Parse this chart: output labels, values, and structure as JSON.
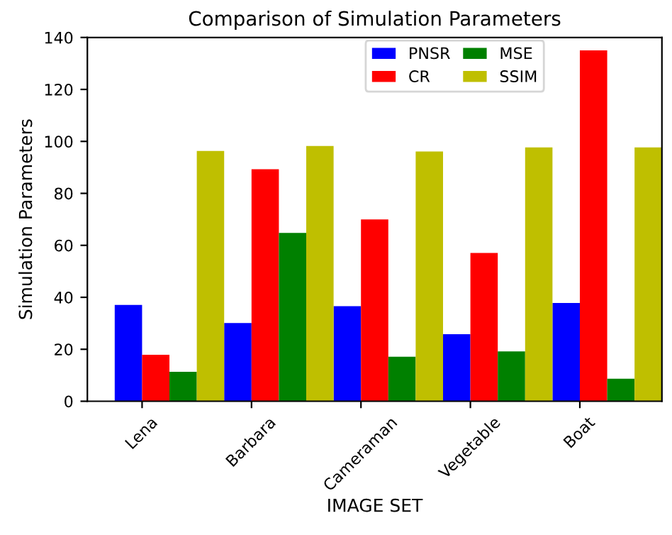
{
  "chart_data": {
    "type": "bar",
    "title": "Comparison of Simulation Parameters",
    "xlabel": "IMAGE SET",
    "ylabel": "Simulation Parameters",
    "categories": [
      "Lena",
      "Barbara",
      "Cameraman",
      "Vegetable",
      "Boat"
    ],
    "series": [
      {
        "name": "PNSR",
        "color": "#0000ff",
        "values": [
          37.1,
          30.1,
          36.6,
          25.8,
          37.8
        ]
      },
      {
        "name": "CR",
        "color": "#ff0000",
        "values": [
          17.9,
          89.3,
          70.0,
          57.1,
          135
        ]
      },
      {
        "name": "MSE",
        "color": "#008000",
        "values": [
          11.3,
          64.8,
          17.1,
          19.2,
          8.7
        ]
      },
      {
        "name": "SSIM",
        "color": "#bfbf00",
        "values": [
          96.3,
          98.2,
          96.1,
          97.7,
          97.7
        ]
      }
    ],
    "ylim": [
      0,
      140
    ],
    "yticks": [
      0,
      20,
      40,
      60,
      80,
      100,
      120,
      140
    ],
    "grid": false,
    "legend": "top right"
  }
}
